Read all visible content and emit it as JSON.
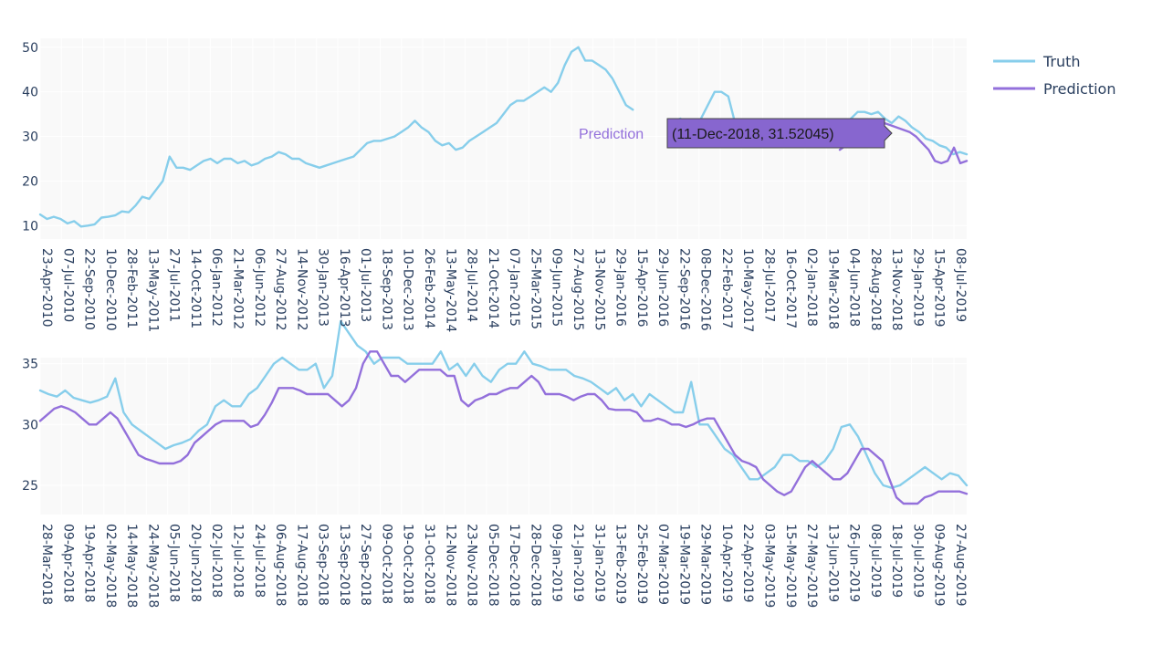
{
  "colors": {
    "truth": "#87ceeb",
    "prediction": "#9370db",
    "plot_bg": "#f9f9f9",
    "grid": "#ffffff",
    "hover_bg": "#8766cf",
    "hover_text": "#1a1a1a"
  },
  "legend": {
    "items": [
      {
        "label": "Truth",
        "color": "#87ceeb"
      },
      {
        "label": "Prediction",
        "color": "#9370db"
      }
    ]
  },
  "hover": {
    "name": "Prediction",
    "text": "(11-Dec-2018, 31.52045)"
  },
  "chart_data": [
    {
      "type": "line",
      "title": "",
      "xlabel": "",
      "ylabel": "",
      "ylim": [
        7,
        52
      ],
      "grid": true,
      "legend_placement": "top-right",
      "y_ticks": [
        10,
        20,
        30,
        40,
        50
      ],
      "x_tick_labels": [
        "23-Apr-2010",
        "07-Jul-2010",
        "22-Sep-2010",
        "10-Dec-2010",
        "28-Feb-2011",
        "13-May-2011",
        "27-Jul-2011",
        "14-Oct-2011",
        "06-Jan-2012",
        "21-Mar-2012",
        "06-Jun-2012",
        "27-Aug-2012",
        "14-Nov-2012",
        "30-Jan-2013",
        "16-Apr-2013",
        "01-Jul-2013",
        "18-Sep-2013",
        "10-Dec-2013",
        "26-Feb-2014",
        "13-May-2014",
        "28-Jul-2014",
        "21-Oct-2014",
        "07-Jan-2015",
        "25-Mar-2015",
        "09-Jun-2015",
        "27-Aug-2015",
        "13-Nov-2015",
        "29-Jan-2016",
        "15-Apr-2016",
        "29-Jun-2016",
        "22-Sep-2016",
        "08-Dec-2016",
        "22-Feb-2017",
        "10-May-2017",
        "28-Jul-2017",
        "16-Oct-2017",
        "02-Jan-2018",
        "19-Mar-2018",
        "04-Jun-2018",
        "28-Aug-2018",
        "13-Nov-2018",
        "29-Jan-2019",
        "15-Apr-2019",
        "08-Jul-2019"
      ],
      "series": [
        {
          "name": "Truth",
          "values": [
            12.5,
            11.5,
            12,
            11.5,
            10.5,
            11,
            9.8,
            10,
            10.3,
            11.8,
            12,
            12.3,
            13.2,
            13,
            14.5,
            16.5,
            16,
            18,
            20,
            25.5,
            23,
            23,
            22.5,
            23.5,
            24.5,
            25,
            24,
            25,
            25,
            24,
            24.5,
            23.5,
            24,
            25,
            25.5,
            26.5,
            26,
            25,
            25,
            24,
            23.5,
            23,
            23.5,
            24,
            24.5,
            25,
            25.5,
            27,
            28.5,
            29,
            29,
            29.5,
            30,
            31,
            32,
            33.5,
            32,
            31,
            29,
            28,
            28.5,
            27,
            27.5,
            29,
            30,
            31,
            32,
            33,
            35,
            37,
            38,
            38,
            39,
            40,
            41,
            40,
            42,
            46,
            49,
            50,
            47,
            47,
            46,
            45,
            43,
            40,
            37,
            36,
            null,
            null,
            null,
            null,
            null,
            33.5,
            34,
            null,
            null,
            34,
            37,
            40,
            40,
            39,
            33,
            31,
            30,
            29,
            29,
            29,
            28.5,
            28.5,
            28,
            28,
            28.5,
            28.5,
            29,
            29,
            30,
            31,
            32,
            34,
            35.5,
            35.5,
            35,
            35.5,
            34,
            33,
            34.5,
            33.5,
            32,
            31,
            29.5,
            29,
            28,
            27.5,
            26,
            26.5,
            26
          ]
        },
        {
          "name": "Prediction",
          "values": [
            null,
            null,
            null,
            null,
            null,
            null,
            null,
            null,
            null,
            null,
            null,
            null,
            null,
            null,
            null,
            null,
            null,
            null,
            null,
            null,
            null,
            null,
            null,
            null,
            null,
            null,
            null,
            null,
            null,
            null,
            null,
            null,
            null,
            null,
            null,
            null,
            null,
            null,
            null,
            null,
            null,
            null,
            null,
            null,
            null,
            null,
            null,
            null,
            null,
            null,
            null,
            null,
            null,
            null,
            null,
            null,
            null,
            null,
            null,
            null,
            null,
            null,
            null,
            null,
            null,
            null,
            null,
            null,
            null,
            null,
            null,
            null,
            null,
            null,
            null,
            null,
            null,
            null,
            null,
            null,
            null,
            null,
            null,
            null,
            null,
            null,
            null,
            null,
            null,
            null,
            null,
            null,
            null,
            null,
            null,
            null,
            null,
            null,
            null,
            null,
            null,
            null,
            null,
            null,
            null,
            null,
            null,
            null,
            null,
            null,
            null,
            null,
            null,
            null,
            null,
            null,
            null,
            null,
            null,
            null,
            null,
            null,
            null,
            null,
            null,
            null,
            27,
            28,
            30,
            31.5,
            32.5,
            33,
            33.5,
            33,
            32.5,
            32,
            31.5,
            31,
            30,
            28.5,
            27,
            24.5,
            24,
            24.5,
            27.5,
            24,
            24.5
          ]
        }
      ]
    },
    {
      "type": "line",
      "title": "",
      "xlabel": "",
      "ylabel": "",
      "ylim": [
        22.6,
        35.5
      ],
      "grid": true,
      "y_ticks": [
        25,
        30,
        35
      ],
      "x_tick_labels": [
        "28-Mar-2018",
        "09-Apr-2018",
        "19-Apr-2018",
        "02-May-2018",
        "14-May-2018",
        "24-May-2018",
        "05-Jun-2018",
        "20-Jun-2018",
        "02-Jul-2018",
        "12-Jul-2018",
        "24-Jul-2018",
        "06-Aug-2018",
        "17-Aug-2018",
        "03-Sep-2018",
        "13-Sep-2018",
        "27-Sep-2018",
        "09-Oct-2018",
        "19-Oct-2018",
        "31-Oct-2018",
        "12-Nov-2018",
        "23-Nov-2018",
        "05-Dec-2018",
        "17-Dec-2018",
        "28-Dec-2018",
        "09-Jan-2019",
        "21-Jan-2019",
        "31-Jan-2019",
        "13-Feb-2019",
        "25-Feb-2019",
        "07-Mar-2019",
        "19-Mar-2019",
        "29-Mar-2019",
        "10-Apr-2019",
        "22-Apr-2019",
        "03-May-2019",
        "15-May-2019",
        "27-May-2019",
        "13-Jun-2019",
        "26-Jun-2019",
        "08-Jul-2019",
        "18-Jul-2019",
        "30-Jul-2019",
        "09-Aug-2019",
        "27-Aug-2019"
      ],
      "series": [
        {
          "name": "Truth",
          "values": [
            32.8,
            32.5,
            32.3,
            32.8,
            32.2,
            32,
            31.8,
            32,
            32.3,
            33.8,
            31,
            30,
            29.5,
            29,
            28.5,
            28,
            28.3,
            28.5,
            28.8,
            29.5,
            30,
            31.5,
            32,
            31.5,
            31.5,
            32.5,
            33,
            34,
            35,
            35.5,
            35,
            34.5,
            34.5,
            35,
            33,
            34,
            38.5,
            37.5,
            36.5,
            36,
            35,
            35.5,
            35.5,
            35.5,
            35,
            35,
            35,
            35,
            36,
            34.5,
            35,
            34,
            35,
            34,
            33.5,
            34.5,
            35,
            35,
            36,
            35,
            34.8,
            34.5,
            34.5,
            34.5,
            34,
            33.8,
            33.5,
            33,
            32.5,
            33,
            32,
            32.5,
            31.5,
            32.5,
            32,
            31.5,
            31,
            31,
            33.5,
            30,
            30,
            29,
            28,
            27.5,
            26.5,
            25.5,
            25.5,
            26,
            26.5,
            27.5,
            27.5,
            27,
            27,
            26.5,
            27,
            28,
            29.8,
            30,
            29,
            27.5,
            26,
            25,
            24.8,
            25,
            25.5,
            26,
            26.5,
            26,
            25.5,
            26,
            25.8,
            25
          ]
        },
        {
          "name": "Prediction",
          "values": [
            30.3,
            30.8,
            31.3,
            31.5,
            31.3,
            31,
            30.5,
            30,
            30,
            30.5,
            31,
            30.5,
            29.5,
            28.5,
            27.5,
            27.2,
            27,
            26.8,
            26.8,
            26.8,
            27,
            27.5,
            28.5,
            29,
            29.5,
            30,
            30.3,
            30.3,
            30.3,
            30.3,
            29.8,
            30,
            30.8,
            31.8,
            33,
            33,
            33,
            32.8,
            32.5,
            32.5,
            32.5,
            32.5,
            32,
            31.5,
            32,
            33,
            35,
            36,
            36,
            35,
            34,
            34,
            33.5,
            34,
            34.5,
            34.5,
            34.5,
            34.5,
            34,
            34,
            32,
            31.5,
            32,
            32.2,
            32.5,
            32.5,
            32.8,
            33,
            33,
            33.5,
            34,
            33.5,
            32.5,
            32.5,
            32.5,
            32.3,
            32,
            32.3,
            32.5,
            32.5,
            32,
            31.3,
            31.2,
            31.2,
            31.2,
            31,
            30.3,
            30.3,
            30.5,
            30.3,
            30,
            30,
            29.8,
            30,
            30.3,
            30.5,
            30.5,
            29.5,
            28.5,
            27.5,
            27,
            26.8,
            26.5,
            25.5,
            25,
            24.5,
            24.2,
            24.5,
            25.5,
            26.5,
            27,
            26.5,
            26,
            25.5,
            25.5,
            26,
            27,
            28,
            28,
            27.5,
            27,
            25.5,
            24,
            23.5,
            23.5,
            23.5,
            24,
            24.2,
            24.5,
            24.5,
            24.5,
            24.5,
            24.3
          ]
        }
      ]
    }
  ]
}
